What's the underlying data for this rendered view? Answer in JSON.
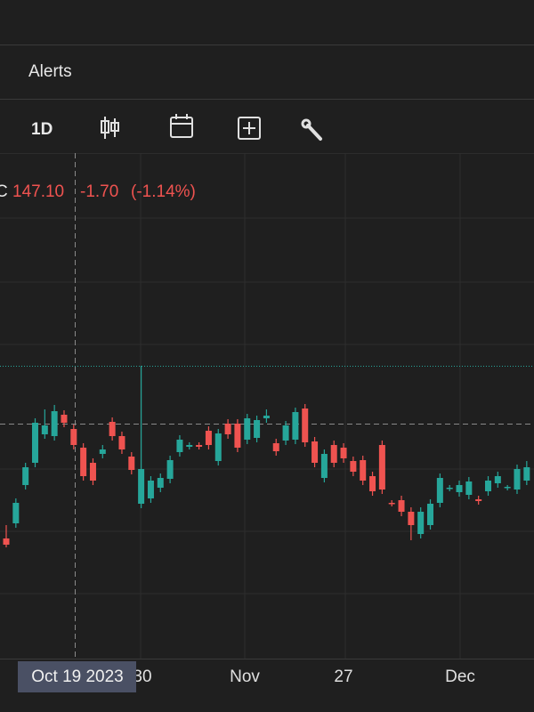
{
  "tabs": {
    "alerts": "Alerts"
  },
  "toolbar": {
    "interval": "1D"
  },
  "legend": {
    "label": "C",
    "close": "147.10",
    "change": "-1.70",
    "change_pct": "(-1.14%)"
  },
  "chart_data": {
    "type": "candlestick",
    "up_color": "#26a69a",
    "down_color": "#ef5350",
    "crosshair_label": "Oct 19 2023",
    "x_labels": [
      "30",
      "Nov",
      "27",
      "Dec"
    ],
    "open": [
      134.1,
      135.8,
      140.1,
      142.6,
      145.8,
      145.6,
      148.0,
      146.4,
      144.3,
      142.6,
      143.6,
      147.2,
      145.6,
      143.3,
      138.0,
      138.6,
      139.8,
      140.8,
      143.8,
      144.4,
      144.6,
      146.2,
      142.8,
      147.0,
      147.0,
      145.2,
      145.4,
      147.6,
      144.8,
      145.1,
      145.2,
      148.7,
      145.0,
      140.9,
      144.6,
      144.3,
      142.8,
      142.9,
      141.1,
      144.6,
      138.1,
      138.4,
      137.1,
      134.6,
      135.6,
      138.1,
      139.7,
      139.3,
      139.0,
      138.5,
      139.4,
      140.3,
      139.8,
      139.6,
      140.6
    ],
    "high": [
      135.6,
      138.6,
      142.6,
      147.6,
      148.6,
      149.1,
      148.5,
      146.9,
      144.8,
      143.1,
      144.6,
      147.7,
      146.1,
      143.8,
      153.5,
      141.1,
      141.4,
      143.4,
      145.7,
      144.9,
      144.9,
      146.7,
      146.4,
      147.5,
      147.5,
      148.1,
      147.9,
      148.6,
      145.3,
      147.3,
      148.8,
      149.2,
      145.5,
      144.1,
      145.1,
      144.8,
      143.3,
      143.4,
      141.6,
      145.1,
      138.4,
      138.9,
      137.6,
      137.6,
      138.5,
      141.4,
      140.1,
      140.6,
      141.0,
      138.9,
      141.1,
      141.6,
      140.1,
      142.4,
      142.8
    ],
    "low": [
      133.1,
      135.3,
      139.6,
      142.1,
      145.3,
      145.1,
      146.6,
      144.1,
      140.6,
      140.1,
      143.1,
      145.1,
      143.6,
      141.3,
      137.5,
      138.1,
      139.3,
      140.3,
      143.3,
      144.1,
      144.1,
      144.1,
      142.3,
      145.3,
      143.8,
      144.7,
      144.9,
      147.1,
      143.4,
      144.6,
      144.7,
      144.4,
      142.1,
      140.4,
      142.1,
      142.6,
      141.1,
      140.1,
      138.9,
      139.1,
      137.7,
      136.6,
      133.9,
      134.1,
      135.1,
      137.6,
      139.4,
      138.8,
      138.5,
      137.9,
      138.9,
      139.8,
      139.5,
      139.1,
      140.1
    ],
    "close": [
      133.4,
      138.1,
      142.1,
      147.1,
      146.8,
      148.4,
      147.1,
      144.6,
      141.1,
      140.6,
      144.1,
      145.6,
      144.1,
      141.8,
      141.9,
      140.6,
      140.9,
      142.9,
      145.2,
      144.6,
      144.4,
      144.6,
      145.9,
      145.8,
      144.3,
      147.6,
      147.4,
      147.9,
      143.9,
      146.8,
      148.3,
      144.9,
      142.6,
      143.6,
      142.6,
      143.1,
      141.6,
      140.6,
      139.4,
      139.6,
      138.0,
      137.1,
      135.6,
      137.1,
      138.0,
      140.9,
      139.8,
      140.1,
      140.5,
      138.3,
      140.6,
      141.1,
      139.9,
      141.9,
      142.1
    ]
  }
}
